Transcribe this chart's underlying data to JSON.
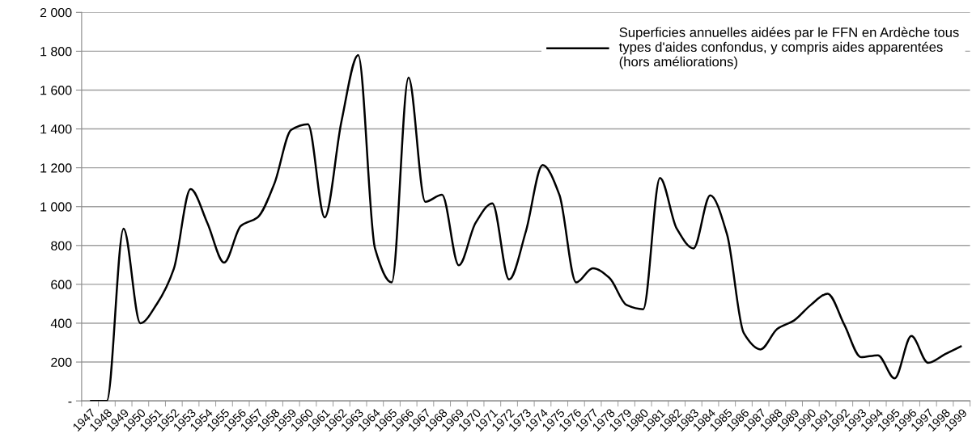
{
  "chart_data": {
    "type": "line",
    "categories": [
      "1947",
      "1948",
      "1949",
      "1950",
      "1951",
      "1952",
      "1953",
      "1954",
      "1955",
      "1956",
      "1957",
      "1958",
      "1959",
      "1960",
      "1961",
      "1962",
      "1963",
      "1964",
      "1965",
      "1966",
      "1967",
      "1968",
      "1969",
      "1970",
      "1971",
      "1972",
      "1973",
      "1974",
      "1975",
      "1976",
      "1977",
      "1978",
      "1979",
      "1980",
      "1981",
      "1982",
      "1983",
      "1984",
      "1985",
      "1986",
      "1987",
      "1988",
      "1989",
      "1990",
      "1991",
      "1992",
      "1993",
      "1994",
      "1995",
      "1996",
      "1997",
      "1998",
      "1999"
    ],
    "series": [
      {
        "name": "Superficies annuelles aidées par le FFN en Ardèche tous\ntypes d'aides confondus, y compris aides apparentées\n(hors améliorations)",
        "color": "#000000",
        "values": [
          0,
          0,
          887,
          400,
          501,
          680,
          1090,
          916,
          712,
          901,
          945,
          1119,
          1395,
          1424,
          945,
          1439,
          1780,
          785,
          610,
          1664,
          1025,
          1061,
          698,
          916,
          1017,
          625,
          872,
          1214,
          1061,
          610,
          683,
          632,
          494,
          472,
          1148,
          887,
          785,
          1058,
          858,
          349,
          265,
          371,
          414,
          494,
          552,
          392,
          225,
          235,
          116,
          334,
          196,
          240,
          283
        ]
      }
    ],
    "ylim": [
      0,
      2000
    ],
    "yticks": [
      {
        "value": 0,
        "label": "-"
      },
      {
        "value": 200,
        "label": "200"
      },
      {
        "value": 400,
        "label": "400"
      },
      {
        "value": 600,
        "label": "600"
      },
      {
        "value": 800,
        "label": "800"
      },
      {
        "value": 1000,
        "label": "1 000"
      },
      {
        "value": 1200,
        "label": "1 200"
      },
      {
        "value": 1400,
        "label": "1 400"
      },
      {
        "value": 1600,
        "label": "1 600"
      },
      {
        "value": 1800,
        "label": "1 800"
      },
      {
        "value": 2000,
        "label": "2 000"
      }
    ],
    "grid": "y",
    "legend": "top right",
    "marker": "none",
    "line_style": "solid"
  }
}
